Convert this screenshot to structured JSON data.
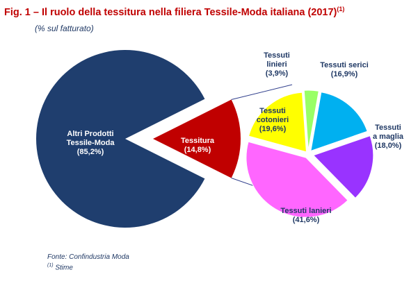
{
  "header": {
    "title": "Fig. 1 – Il ruolo della tessitura nella filiera Tessile-Moda italiana (2017)",
    "title_note": "(1)",
    "subtitle": "(% sul fatturato)"
  },
  "chart_data": [
    {
      "type": "pie",
      "slices": [
        {
          "label": "Altri Prodotti Tessile-Moda",
          "value": 85.2,
          "value_label": "(85,2%)",
          "color": "#1f3e6e"
        },
        {
          "label": "Tessitura",
          "value": 14.8,
          "value_label": "(14,8%)",
          "color": "#c00000"
        }
      ]
    },
    {
      "type": "pie",
      "slices": [
        {
          "label": "Tessuti serici",
          "value": 16.9,
          "value_label": "(16,9%)",
          "color": "#00b0f0"
        },
        {
          "label": "Tessuti a maglia",
          "value": 18.0,
          "value_label": "(18,0%)",
          "color": "#9933ff"
        },
        {
          "label": "Tessuti lanieri",
          "value": 41.6,
          "value_label": "(41,6%)",
          "color": "#ff66ff"
        },
        {
          "label": "Tessuti cotonieri",
          "value": 19.6,
          "value_label": "(19,6%)",
          "color": "#ffff00"
        },
        {
          "label": "Tessuti linieri",
          "value": 3.9,
          "value_label": "(3,9%)",
          "color": "#99ff66"
        }
      ]
    }
  ],
  "footer": {
    "source": "Fonte: Confindustria Moda",
    "note_marker": "(1)",
    "note": "Stime"
  }
}
